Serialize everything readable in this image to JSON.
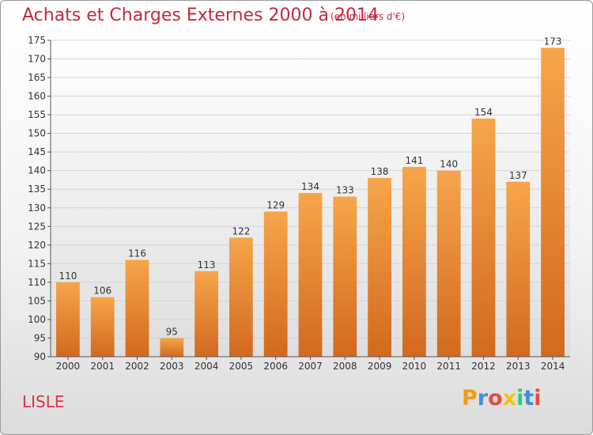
{
  "page": {
    "title": "Achats et Charges Externes 2000 à 2014",
    "subtitle": "(en milliers d'€)",
    "place": "LISLE",
    "logo": {
      "letters": [
        "P",
        "r",
        "o",
        "x",
        "i",
        "t",
        "i"
      ],
      "colors": [
        "#f39c12",
        "#3c8dde",
        "#e74c3c",
        "#f1c40f",
        "#2ecc71",
        "#3c8dde",
        "#e74c3c"
      ]
    }
  },
  "chart_data": {
    "type": "bar",
    "title": "Achats et Charges Externes 2000 à 2014",
    "subtitle": "(en milliers d'€)",
    "categories": [
      "2000",
      "2001",
      "2002",
      "2003",
      "2004",
      "2005",
      "2006",
      "2007",
      "2008",
      "2009",
      "2010",
      "2011",
      "2012",
      "2013",
      "2014"
    ],
    "values": [
      110,
      106,
      116,
      95,
      113,
      122,
      129,
      134,
      133,
      138,
      141,
      140,
      154,
      137,
      173
    ],
    "ylim": [
      90,
      175
    ],
    "yticks": [
      90,
      95,
      100,
      105,
      110,
      115,
      120,
      125,
      130,
      135,
      140,
      145,
      150,
      155,
      160,
      165,
      170,
      175
    ],
    "grid": true,
    "bar_color_light": "#f7a54a",
    "bar_color_dark": "#d2691e"
  }
}
